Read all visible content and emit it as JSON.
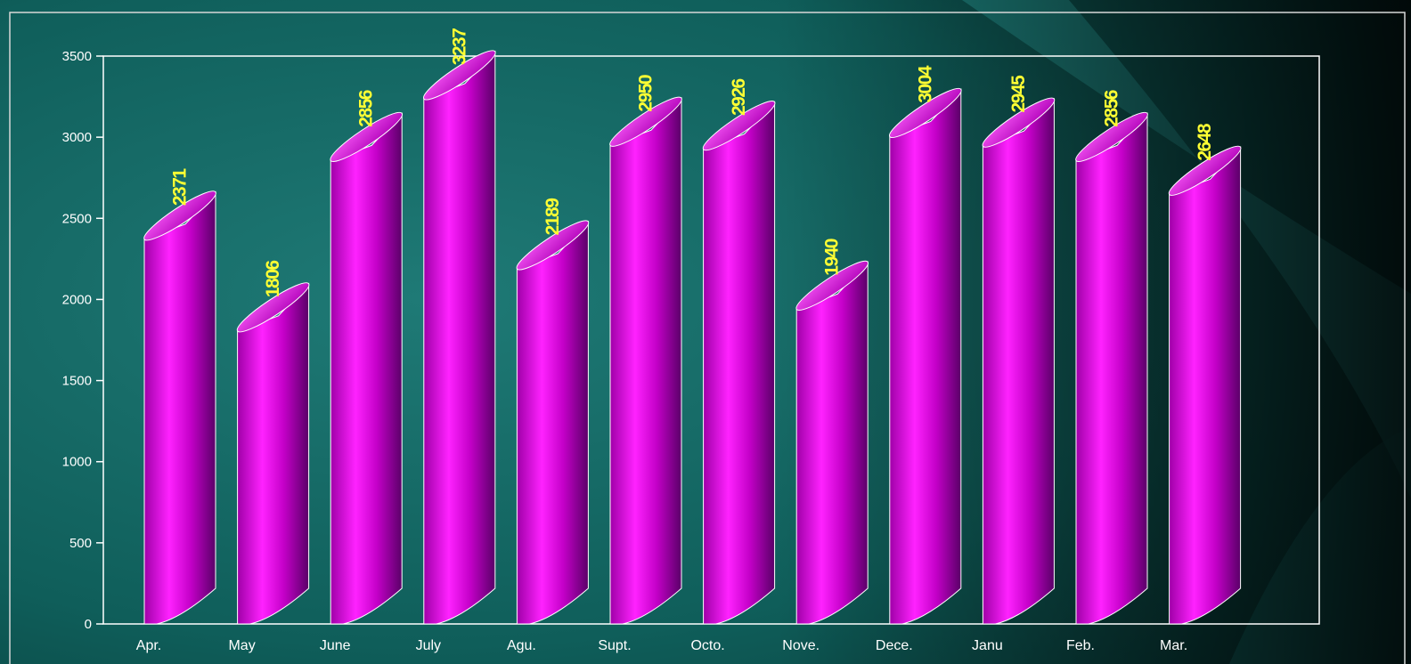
{
  "chart_data": {
    "type": "bar",
    "categories": [
      "Apr.",
      "May",
      "June",
      "July",
      "Agu.",
      "Supt.",
      "Octo.",
      "Nove.",
      "Dece.",
      "Janu",
      "Feb.",
      "Mar."
    ],
    "values": [
      2371,
      1806,
      2856,
      3237,
      2189,
      2950,
      2926,
      1940,
      3004,
      2945,
      2856,
      2648
    ],
    "data_labels": [
      "2371",
      "1806",
      "2856",
      "3237",
      "2189",
      "2950",
      "2926",
      "1940",
      "3004",
      "2945",
      "2856",
      "2648"
    ],
    "y_ticks": [
      "0",
      "500",
      "1000",
      "1500",
      "2000",
      "2500",
      "3000",
      "3500"
    ],
    "ylim": [
      0,
      3500
    ],
    "title": "",
    "xlabel": "",
    "ylabel": "",
    "grid": false,
    "legend": "none",
    "style": "3d-cylinder",
    "colors": {
      "bar": "#cc00cc",
      "bar_top": "#e020e0",
      "data_label": "#ffff33",
      "axis_text": "#ffffff",
      "frame": "#ffffff",
      "background": "#0f5f5c"
    }
  }
}
